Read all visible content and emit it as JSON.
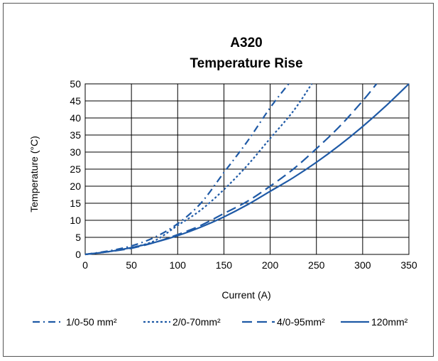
{
  "chart_data": {
    "type": "line",
    "title": "A320",
    "subtitle": "Temperature Rise",
    "xlabel": "Current (A)",
    "ylabel": "Temperature (°C)",
    "xlim": [
      0,
      350
    ],
    "ylim": [
      0,
      50
    ],
    "x_ticks": [
      "0",
      "50",
      "100",
      "150",
      "200",
      "250",
      "300",
      "350"
    ],
    "y_ticks": [
      "0",
      "5",
      "10",
      "15",
      "20",
      "25",
      "30",
      "35",
      "40",
      "45",
      "50"
    ],
    "grid": true,
    "legend_position": "bottom",
    "line_color": "#1f5aa6",
    "series": [
      {
        "name": "1/0-50 mm²",
        "style": "dash-dot",
        "x": [
          0,
          25,
          50,
          75,
          100,
          125,
          150,
          175,
          200,
          220
        ],
        "y": [
          0,
          1,
          2.5,
          5,
          9,
          15,
          24,
          33,
          43,
          50
        ]
      },
      {
        "name": "2/0-70mm²",
        "style": "dotted",
        "x": [
          0,
          25,
          50,
          75,
          100,
          125,
          150,
          175,
          200,
          225,
          245
        ],
        "y": [
          0,
          0.8,
          2,
          4,
          8.5,
          13,
          19,
          26,
          34,
          42,
          50
        ]
      },
      {
        "name": "4/0-95mm²",
        "style": "dashed",
        "x": [
          0,
          25,
          50,
          75,
          100,
          125,
          150,
          175,
          200,
          225,
          250,
          275,
          300,
          315
        ],
        "y": [
          0,
          0.8,
          1.8,
          3.5,
          5.8,
          8.5,
          12,
          15.5,
          20,
          25,
          31,
          37.5,
          45,
          50
        ]
      },
      {
        "name": "120mm²",
        "style": "solid",
        "x": [
          0,
          25,
          50,
          75,
          100,
          125,
          150,
          175,
          200,
          225,
          250,
          275,
          300,
          325,
          350
        ],
        "y": [
          0,
          0.8,
          2,
          3.5,
          5.5,
          8,
          11,
          14.5,
          18.5,
          22.5,
          27,
          32,
          37.5,
          43.5,
          50
        ]
      }
    ]
  }
}
